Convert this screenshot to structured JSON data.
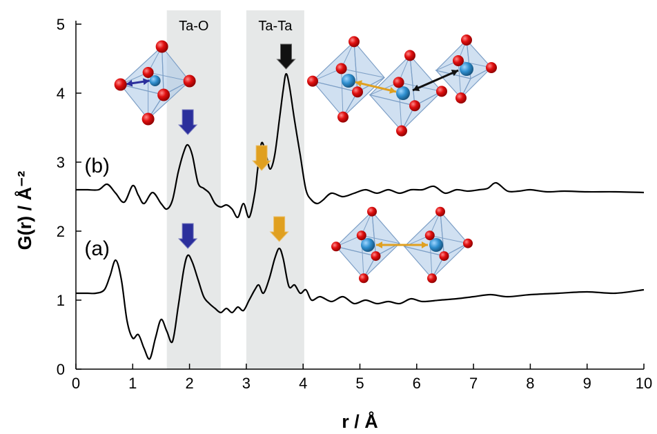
{
  "chart_data": {
    "type": "line",
    "xlabel": "r / Å",
    "ylabel": "G(r) / Å⁻²",
    "xlim": [
      0,
      10
    ],
    "ylim": [
      0,
      5
    ],
    "xticks": [
      "0",
      "1",
      "2",
      "3",
      "4",
      "5",
      "6",
      "7",
      "8",
      "9",
      "10"
    ],
    "yticks": [
      "0",
      "1",
      "2",
      "3",
      "4",
      "5"
    ],
    "grid": false,
    "bands": [
      {
        "label": "Ta-O",
        "x": [
          1.6,
          2.55
        ],
        "color": "#e6e8e8"
      },
      {
        "label": "Ta-Ta",
        "x": [
          3.0,
          4.02
        ],
        "color": "#e6e8e8"
      }
    ],
    "series": [
      {
        "name": "(b)",
        "label_at": [
          0.15,
          2.95
        ],
        "color": "#000000",
        "x": [
          0.0,
          0.2,
          0.4,
          0.55,
          0.7,
          0.85,
          1.0,
          1.1,
          1.2,
          1.35,
          1.5,
          1.6,
          1.7,
          1.8,
          1.9,
          1.97,
          2.05,
          2.15,
          2.25,
          2.35,
          2.45,
          2.55,
          2.65,
          2.75,
          2.85,
          2.95,
          3.05,
          3.15,
          3.2,
          3.27,
          3.35,
          3.42,
          3.5,
          3.58,
          3.65,
          3.7,
          3.76,
          3.85,
          3.95,
          4.05,
          4.15,
          4.25,
          4.35,
          4.5,
          4.7,
          4.9,
          5.1,
          5.3,
          5.5,
          5.7,
          5.9,
          6.1,
          6.3,
          6.5,
          6.7,
          6.9,
          7.1,
          7.25,
          7.4,
          7.6,
          7.8,
          8.0,
          8.3,
          8.6,
          9.0,
          9.5,
          10.0
        ],
        "y": [
          2.6,
          2.6,
          2.6,
          2.68,
          2.55,
          2.42,
          2.66,
          2.52,
          2.4,
          2.56,
          2.4,
          2.32,
          2.45,
          2.85,
          3.15,
          3.25,
          3.1,
          2.7,
          2.62,
          2.55,
          2.4,
          2.35,
          2.38,
          2.32,
          2.2,
          2.4,
          2.2,
          2.55,
          2.9,
          3.28,
          3.1,
          2.9,
          3.1,
          3.6,
          4.05,
          4.28,
          4.1,
          3.6,
          3.1,
          2.6,
          2.45,
          2.4,
          2.45,
          2.55,
          2.5,
          2.55,
          2.6,
          2.55,
          2.6,
          2.55,
          2.6,
          2.6,
          2.65,
          2.55,
          2.6,
          2.58,
          2.6,
          2.62,
          2.7,
          2.58,
          2.58,
          2.6,
          2.57,
          2.58,
          2.57,
          2.57,
          2.56
        ]
      },
      {
        "name": "(a)",
        "label_at": [
          0.15,
          1.75
        ],
        "color": "#000000",
        "x": [
          0.0,
          0.2,
          0.35,
          0.5,
          0.6,
          0.7,
          0.8,
          0.9,
          1.0,
          1.1,
          1.2,
          1.3,
          1.4,
          1.5,
          1.6,
          1.7,
          1.8,
          1.9,
          1.97,
          2.05,
          2.15,
          2.25,
          2.35,
          2.45,
          2.55,
          2.65,
          2.75,
          2.85,
          2.95,
          3.05,
          3.15,
          3.22,
          3.3,
          3.4,
          3.5,
          3.58,
          3.65,
          3.75,
          3.85,
          3.95,
          4.05,
          4.15,
          4.3,
          4.5,
          4.7,
          4.9,
          5.1,
          5.3,
          5.5,
          5.7,
          5.9,
          6.1,
          6.4,
          6.7,
          7.0,
          7.3,
          7.6,
          8.0,
          8.5,
          9.0,
          9.5,
          10.0
        ],
        "y": [
          1.1,
          1.1,
          1.1,
          1.15,
          1.35,
          1.58,
          1.3,
          0.7,
          0.45,
          0.5,
          0.3,
          0.15,
          0.45,
          0.72,
          0.55,
          0.4,
          0.9,
          1.45,
          1.65,
          1.55,
          1.3,
          1.05,
          0.95,
          0.88,
          0.82,
          0.88,
          0.82,
          0.9,
          0.85,
          1.0,
          1.15,
          1.22,
          1.1,
          1.3,
          1.6,
          1.75,
          1.6,
          1.2,
          1.22,
          1.1,
          1.15,
          1.0,
          1.05,
          0.98,
          1.05,
          0.95,
          1.0,
          0.95,
          0.98,
          0.95,
          1.02,
          0.98,
          1.0,
          1.02,
          1.05,
          1.08,
          1.05,
          1.08,
          1.1,
          1.12,
          1.1,
          1.15
        ]
      }
    ],
    "annotations": [
      {
        "type": "arrow",
        "x": 1.97,
        "y_tip": 3.4,
        "color": "#2b2f9c"
      },
      {
        "type": "arrow",
        "x": 3.27,
        "y_tip": 2.88,
        "color": "#e0a020"
      },
      {
        "type": "arrow",
        "x": 3.7,
        "y_tip": 4.35,
        "color": "#111111"
      },
      {
        "type": "arrow",
        "x": 1.97,
        "y_tip": 1.75,
        "color": "#2b2f9c"
      },
      {
        "type": "arrow",
        "x": 3.58,
        "y_tip": 1.85,
        "color": "#e0a020"
      }
    ],
    "insets": [
      {
        "name": "single-octahedron",
        "center": [
          1.15,
          4.15
        ],
        "icon": "octahedron-icon"
      },
      {
        "name": "edge-and-corner-sharing-octahedra",
        "center": [
          6.1,
          3.95
        ],
        "icon": "octahedra-chain-icon"
      },
      {
        "name": "edge-sharing-octahedra-pair",
        "center": [
          6.0,
          1.9
        ],
        "icon": "octahedra-pair-icon"
      }
    ]
  },
  "colors": {
    "oxygen": "#e01010",
    "tantalum": "#2f8fcf",
    "polyhedron_face": "#a9c6e6",
    "polyhedron_edge": "#7d9fc6",
    "band": "#e6e8e8"
  }
}
